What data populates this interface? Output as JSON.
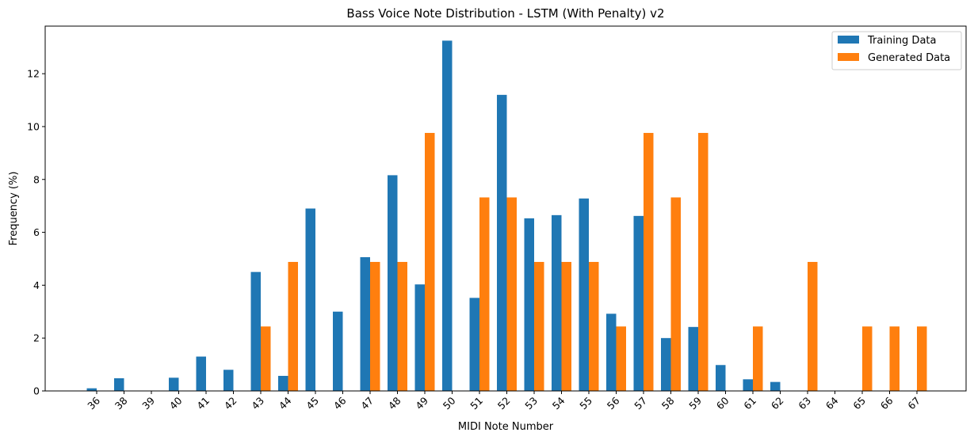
{
  "chart_data": {
    "type": "bar",
    "title": "Bass Voice Note Distribution - LSTM (With Penalty) v2",
    "xlabel": "MIDI Note Number",
    "ylabel": "Frequency (%)",
    "categories": [
      "36",
      "38",
      "39",
      "40",
      "41",
      "42",
      "43",
      "44",
      "45",
      "46",
      "47",
      "48",
      "49",
      "50",
      "51",
      "52",
      "53",
      "54",
      "55",
      "56",
      "57",
      "58",
      "59",
      "60",
      "61",
      "62",
      "63",
      "64",
      "65",
      "66",
      "67"
    ],
    "series": [
      {
        "name": "Training Data",
        "color": "#1f77b4",
        "values": [
          0.1,
          0.48,
          0,
          0.5,
          1.3,
          0.8,
          4.5,
          0.57,
          6.9,
          3.0,
          5.06,
          8.16,
          4.03,
          13.25,
          3.52,
          11.2,
          6.53,
          6.65,
          7.28,
          2.92,
          6.62,
          2.0,
          2.42,
          0.98,
          0.44,
          0.34,
          0,
          0,
          0,
          0,
          0
        ]
      },
      {
        "name": "Generated Data",
        "color": "#ff7f0e",
        "values": [
          0,
          0,
          0,
          0,
          0,
          0,
          2.44,
          4.88,
          0,
          0,
          4.88,
          4.88,
          9.76,
          0,
          7.32,
          7.32,
          4.88,
          4.88,
          4.88,
          2.44,
          9.76,
          7.32,
          9.76,
          0,
          2.44,
          0,
          4.88,
          0,
          2.44,
          2.44,
          2.44
        ]
      }
    ],
    "yticks": [
      "0",
      "2",
      "4",
      "6",
      "8",
      "10",
      "12"
    ],
    "ylim": [
      0,
      13.8
    ],
    "grid": false,
    "legend_position": "top-right"
  }
}
